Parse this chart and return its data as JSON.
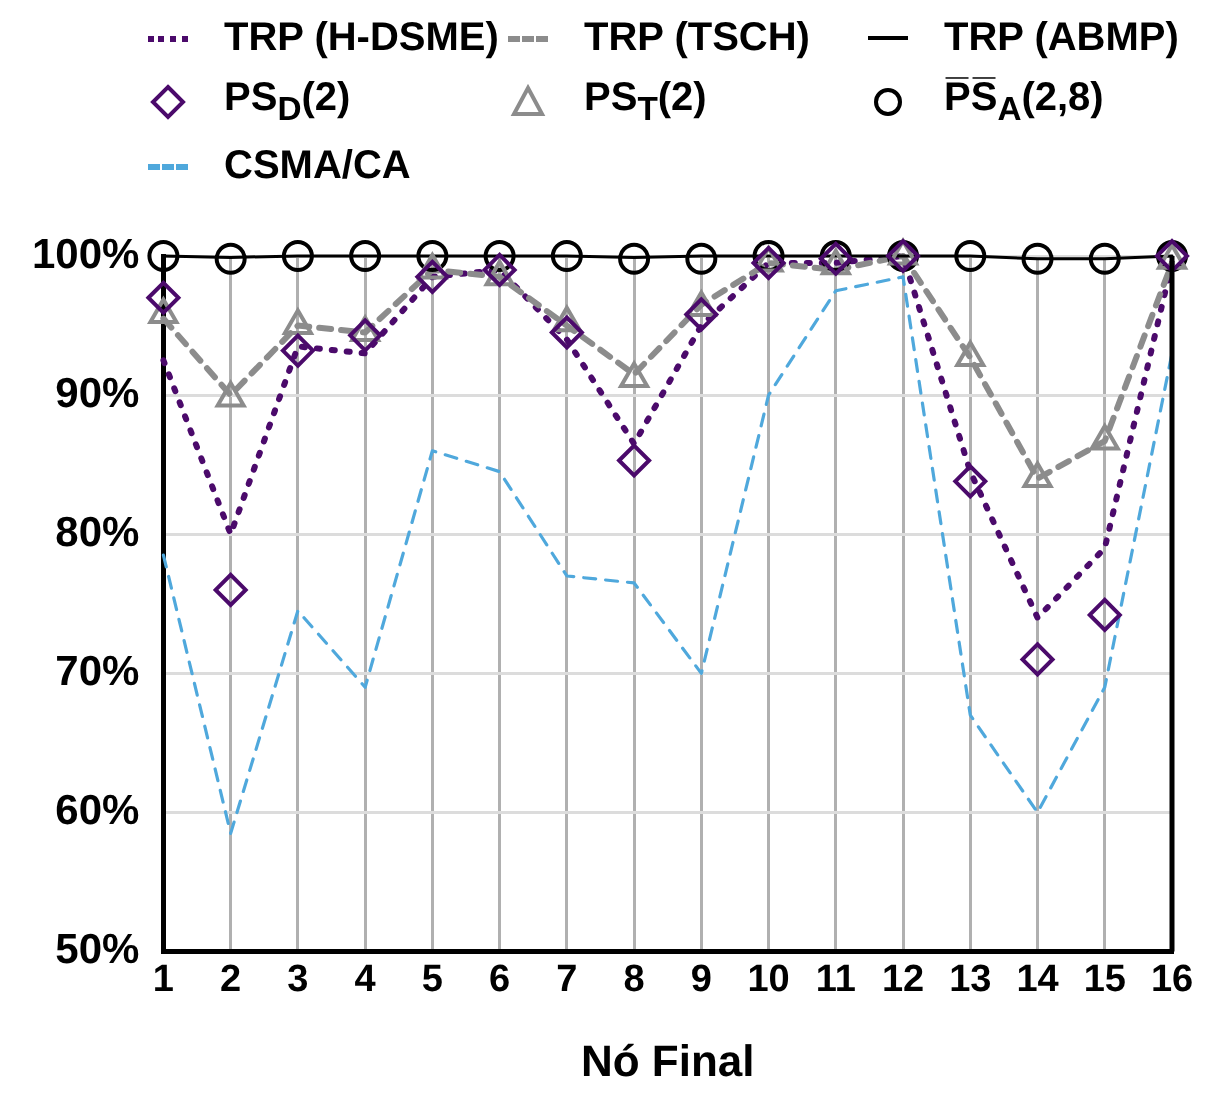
{
  "chart_data": {
    "type": "line",
    "xlabel": "Nó Final",
    "x": [
      1,
      2,
      3,
      4,
      5,
      6,
      7,
      8,
      9,
      10,
      11,
      12,
      13,
      14,
      15,
      16
    ],
    "xlim": [
      1,
      16
    ],
    "xticks": [
      1,
      2,
      3,
      4,
      5,
      6,
      7,
      8,
      9,
      10,
      11,
      12,
      13,
      14,
      15,
      16
    ],
    "ylim": [
      50,
      100
    ],
    "yticks": [
      {
        "value": 50,
        "label": "50%"
      },
      {
        "value": 60,
        "label": "60%"
      },
      {
        "value": 70,
        "label": "70%"
      },
      {
        "value": 80,
        "label": "80%"
      },
      {
        "value": 90,
        "label": "90%"
      },
      {
        "value": 100,
        "label": "100%"
      }
    ],
    "grid": true,
    "legend": "top",
    "series": [
      {
        "name": "TRP (H-DSME)",
        "marker": "none",
        "line_style": "dotted",
        "color": "#4b0a6b",
        "values": [
          92.5,
          80,
          93.5,
          93,
          98.5,
          99,
          94,
          86.5,
          95,
          99.5,
          99.5,
          100,
          84.5,
          74,
          79,
          99.5
        ]
      },
      {
        "name": "TRP (TSCH)",
        "marker": "none",
        "line_style": "dashed",
        "color": "#8c8c8c",
        "values": [
          95.5,
          90,
          95,
          94.5,
          99,
          98.5,
          95,
          91.5,
          96.5,
          99.5,
          99,
          100,
          92.7,
          84,
          86.7,
          99.5
        ]
      },
      {
        "name": "TRP (ABMP)",
        "marker": "none",
        "line_style": "solid",
        "color": "#000000",
        "values": [
          100,
          99.9,
          100,
          100,
          100,
          100,
          100,
          99.9,
          100,
          100,
          100,
          100,
          100,
          99.8,
          99.8,
          100
        ]
      },
      {
        "name": "PS$_{D}$(2)",
        "type": "scatter",
        "marker": "diamond",
        "color": "#4b0a6b",
        "values": [
          97,
          76,
          93.2,
          94.3,
          98.5,
          99,
          94.5,
          85.3,
          95.8,
          99.5,
          99.8,
          100,
          83.8,
          71,
          74.2,
          100
        ]
      },
      {
        "name": "PS$_{T}$(2)",
        "type": "scatter",
        "marker": "triangle",
        "color": "#8c8c8c",
        "values": [
          95.8,
          89.8,
          95,
          94.5,
          99,
          98.5,
          95.2,
          91.2,
          96.3,
          99.5,
          99.3,
          100,
          92.7,
          84,
          86.7,
          99.7
        ]
      },
      {
        "name": "P̅S̅$_{A}$(2,8)",
        "type": "scatter",
        "marker": "circle",
        "color": "#000000",
        "values": [
          100,
          99.8,
          100,
          100,
          100,
          100,
          100,
          99.8,
          99.8,
          100,
          100,
          100,
          100,
          99.8,
          99.8,
          100
        ]
      },
      {
        "name": "CSMA/CA",
        "marker": "none",
        "line_style": "dashed",
        "color": "#4fa8dc",
        "values": [
          78.5,
          58.5,
          74.5,
          69,
          86,
          84.5,
          77,
          76.5,
          70,
          90,
          97.5,
          98.5,
          67,
          60,
          69,
          93
        ]
      }
    ]
  }
}
